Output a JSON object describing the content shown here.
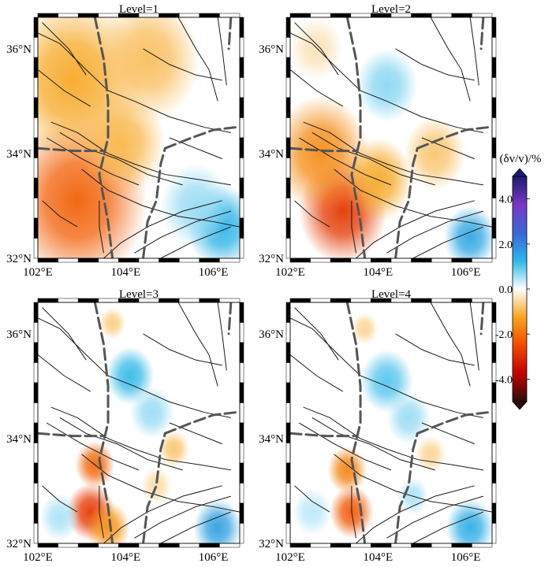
{
  "chart_data": [
    {
      "type": "heatmap",
      "title": "Level=1",
      "x_ticks": [
        "102°E",
        "104°E",
        "106°E"
      ],
      "y_ticks": [
        "32°N",
        "34°N",
        "36°N"
      ],
      "xlim": [
        102.0,
        106.6
      ],
      "ylim": [
        32.0,
        36.6
      ],
      "anomalies": [
        {
          "lon": 102.9,
          "lat": 33.1,
          "dv": -2.2,
          "radius": 1.6
        },
        {
          "lon": 102.8,
          "lat": 35.4,
          "dv": -1.2,
          "radius": 1.6
        },
        {
          "lon": 104.5,
          "lat": 35.8,
          "dv": -0.9,
          "radius": 1.2
        },
        {
          "lon": 103.9,
          "lat": 34.2,
          "dv": -1.0,
          "radius": 1.0
        },
        {
          "lon": 106.2,
          "lat": 32.6,
          "dv": 1.3,
          "radius": 0.8
        },
        {
          "lon": 105.6,
          "lat": 33.0,
          "dv": 0.6,
          "radius": 0.8
        }
      ]
    },
    {
      "type": "heatmap",
      "title": "Level=2",
      "x_ticks": [
        "102°E",
        "104°E",
        "106°E"
      ],
      "y_ticks": [
        "32°N",
        "34°N",
        "36°N"
      ],
      "xlim": [
        102.0,
        106.6
      ],
      "ylim": [
        32.0,
        36.6
      ],
      "anomalies": [
        {
          "lon": 103.2,
          "lat": 32.9,
          "dv": -2.8,
          "radius": 1.0
        },
        {
          "lon": 102.7,
          "lat": 34.0,
          "dv": -1.6,
          "radius": 1.1
        },
        {
          "lon": 104.0,
          "lat": 33.5,
          "dv": -1.2,
          "radius": 0.8
        },
        {
          "lon": 105.3,
          "lat": 34.0,
          "dv": -0.8,
          "radius": 0.7
        },
        {
          "lon": 104.2,
          "lat": 35.3,
          "dv": 0.7,
          "radius": 0.7
        },
        {
          "lon": 106.1,
          "lat": 32.4,
          "dv": 1.5,
          "radius": 0.6
        },
        {
          "lon": 102.6,
          "lat": 36.0,
          "dv": -0.4,
          "radius": 0.6
        }
      ]
    },
    {
      "type": "heatmap",
      "title": "Level=3",
      "x_ticks": [
        "102°E",
        "104°E",
        "106°E"
      ],
      "y_ticks": [
        "32°N",
        "34°N",
        "36°N"
      ],
      "xlim": [
        102.0,
        106.6
      ],
      "ylim": [
        32.0,
        36.6
      ],
      "anomalies": [
        {
          "lon": 103.2,
          "lat": 32.6,
          "dv": -2.8,
          "radius": 0.55
        },
        {
          "lon": 103.3,
          "lat": 33.5,
          "dv": -2.1,
          "radius": 0.45
        },
        {
          "lon": 103.6,
          "lat": 32.3,
          "dv": -1.5,
          "radius": 0.5
        },
        {
          "lon": 104.1,
          "lat": 35.2,
          "dv": 1.2,
          "radius": 0.55
        },
        {
          "lon": 104.6,
          "lat": 34.5,
          "dv": 0.6,
          "radius": 0.5
        },
        {
          "lon": 106.1,
          "lat": 32.3,
          "dv": 1.6,
          "radius": 0.55
        },
        {
          "lon": 102.5,
          "lat": 32.5,
          "dv": 0.5,
          "radius": 0.45
        },
        {
          "lon": 103.7,
          "lat": 36.2,
          "dv": -0.7,
          "radius": 0.3
        },
        {
          "lon": 105.1,
          "lat": 33.8,
          "dv": -0.8,
          "radius": 0.35
        },
        {
          "lon": 104.7,
          "lat": 33.1,
          "dv": -0.5,
          "radius": 0.35
        }
      ]
    },
    {
      "type": "heatmap",
      "title": "Level=4",
      "x_ticks": [
        "102°E",
        "104°E",
        "106°E"
      ],
      "y_ticks": [
        "32°N",
        "34°N",
        "36°N"
      ],
      "xlim": [
        102.0,
        106.6
      ],
      "ylim": [
        32.0,
        36.6
      ],
      "anomalies": [
        {
          "lon": 103.4,
          "lat": 32.6,
          "dv": -2.3,
          "radius": 0.5
        },
        {
          "lon": 103.3,
          "lat": 33.4,
          "dv": -1.7,
          "radius": 0.45
        },
        {
          "lon": 104.2,
          "lat": 35.1,
          "dv": 1.0,
          "radius": 0.6
        },
        {
          "lon": 104.7,
          "lat": 34.4,
          "dv": 0.6,
          "radius": 0.5
        },
        {
          "lon": 106.1,
          "lat": 32.3,
          "dv": 1.4,
          "radius": 0.55
        },
        {
          "lon": 102.5,
          "lat": 32.6,
          "dv": 0.4,
          "radius": 0.45
        },
        {
          "lon": 103.7,
          "lat": 36.1,
          "dv": -0.6,
          "radius": 0.3
        },
        {
          "lon": 105.2,
          "lat": 33.7,
          "dv": -0.6,
          "radius": 0.35
        },
        {
          "lon": 104.8,
          "lat": 32.9,
          "dv": 0.5,
          "radius": 0.35
        }
      ]
    }
  ],
  "colorbar": {
    "title": "(δv/v)/%",
    "tick_labels": [
      "4.0",
      "2.0",
      "0.0",
      "-2.0",
      "-4.0"
    ],
    "tick_values": [
      4.0,
      2.0,
      0.0,
      -2.0,
      -4.0
    ],
    "range": [
      -5.0,
      5.0
    ]
  },
  "colors": {
    "colormap": [
      "#2a0d0d",
      "#c40000",
      "#f04a00",
      "#f7a51e",
      "#ffffff",
      "#2db7e8",
      "#3b66d4",
      "#7a38c4",
      "#1d1b6e"
    ],
    "fault": "#1a1a1a",
    "boundary": "#555555"
  }
}
